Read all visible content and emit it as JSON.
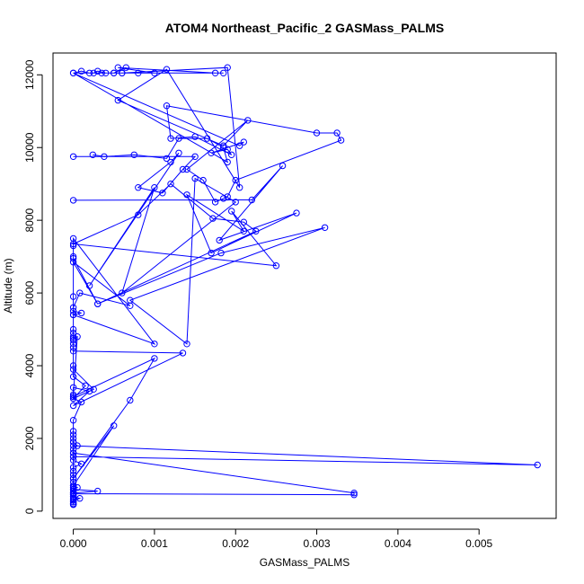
{
  "chart_data": {
    "type": "line",
    "title": "ATOM4 Northeast_Pacific_2 GASMass_PALMS",
    "xlabel": "GASMass_PALMS",
    "ylabel": "Altitude (m)",
    "xlim": [
      -0.00025,
      0.00595
    ],
    "ylim": [
      -200,
      12600
    ],
    "xticks": [
      0,
      0.001,
      0.002,
      0.003,
      0.004,
      0.005
    ],
    "xtick_labels": [
      "0.000",
      "0.001",
      "0.002",
      "0.003",
      "0.004",
      "0.005"
    ],
    "yticks": [
      0,
      2000,
      4000,
      6000,
      8000,
      10000,
      12000
    ],
    "ytick_labels": [
      "0",
      "2000",
      "4000",
      "6000",
      "8000",
      "10000",
      "12000"
    ],
    "grid": false,
    "series_color": "#0000ff",
    "series": [
      {
        "x": [
          0.0,
          0.0,
          0.0,
          0.0,
          0.0,
          0.00346,
          0.00346,
          0.0,
          0.0,
          0.00572,
          0.0,
          0.0,
          0.0,
          0.0,
          0.0,
          0.0,
          0.0005,
          0.0,
          0.0007,
          0.001,
          0.0,
          0.0,
          0.0002,
          0.0,
          0.00135,
          0.0,
          0.0,
          0.0,
          0.0,
          0.0,
          0.0,
          0.0,
          0.0001,
          0.0,
          0.0,
          8e-05,
          0.0007,
          0.0,
          0.0003,
          0.0,
          0.0,
          0.0,
          0.001,
          0.0,
          0.0,
          0.0,
          0.0,
          0.0,
          0.00015,
          0.0,
          0.00025,
          0.0,
          0.0,
          0.0,
          5e-05,
          0.0,
          0.0,
          0.0,
          0.0001,
          0.0,
          0.0,
          0.0,
          5e-05,
          0.0,
          0.0,
          0.0,
          0.0,
          0.0001,
          0.0,
          0.0,
          0.0,
          0.0,
          0.0,
          0.0,
          5e-05,
          0.0,
          0.0,
          0.0,
          0.0,
          0.0,
          0.0,
          0.0,
          0.0,
          0.0,
          0.0,
          0.0,
          0.0,
          0.0,
          8e-05,
          0.0,
          0.0,
          0.0,
          0.0003,
          0.0,
          0.0,
          0.0
        ],
        "y": [
          180,
          600,
          650,
          700,
          480,
          450,
          500,
          1600,
          1500,
          1270,
          1800,
          1900,
          2000,
          2100,
          500,
          700,
          2350,
          900,
          3050,
          4200,
          3150,
          3400,
          3300,
          2900,
          4350,
          4400,
          4500,
          4600,
          4800,
          4900,
          5000,
          5500,
          5450,
          5400,
          5600,
          6000,
          5650,
          6850,
          5700,
          6950,
          7300,
          7500,
          4600,
          5400,
          5900,
          7000,
          4000,
          3700,
          3450,
          3100,
          3350,
          3900,
          4700,
          4750,
          4800,
          3200,
          3150,
          3100,
          3000,
          2500,
          2200,
          1900,
          1800,
          1700,
          1600,
          1500,
          1400,
          1300,
          1200,
          1100,
          1000,
          900,
          800,
          700,
          650,
          600,
          550,
          500,
          450,
          400,
          350,
          300,
          250,
          200,
          180,
          200,
          250,
          300,
          350,
          400,
          450,
          500,
          550,
          600,
          650,
          700
        ]
      },
      {
        "x": [
          0.0,
          0.0022,
          0.00258,
          0.0018,
          0.00275,
          0.0017,
          0.0014,
          0.0021,
          0.00195,
          0.0025,
          0.0,
          0.0008,
          0.0012,
          0.00172,
          0.0021,
          0.00225,
          0.0003,
          0.00182,
          0.0031,
          0.0007,
          0.0014,
          0.0015,
          0.002,
          0.0006,
          0.001,
          0.0002,
          0.0013,
          0.0012,
          0.0008,
          0.0011,
          0.00135,
          0.0015,
          0.0
        ],
        "y": [
          8550,
          8560,
          9500,
          7450,
          8200,
          7100,
          8700,
          7700,
          8250,
          6750,
          7350,
          8150,
          9000,
          8050,
          7950,
          7700,
          5700,
          7100,
          7800,
          5800,
          4600,
          9150,
          8500,
          6000,
          8900,
          6200,
          9850,
          9600,
          8900,
          8750,
          9400,
          9750,
          9750
        ]
      },
      {
        "x": [
          0.00024,
          0.00038,
          0.00075,
          0.00115,
          0.0013,
          0.00165,
          0.00185,
          0.0019,
          0.0,
          0.00205,
          0.0021,
          0.0017,
          0.0019,
          0.00195,
          0.0015,
          0.0012,
          0.00115,
          0.003,
          0.00325,
          0.0033,
          0.002,
          0.0019,
          0.00185,
          0.00175,
          0.0016,
          0.0014,
          0.00215,
          0.00185,
          0.00055,
          0.00115,
          0.00205,
          0.0019,
          0.0006,
          0.00035,
          0.0002,
          0.0001,
          0.0,
          0.001,
          0.00055,
          0.00175,
          0.00185,
          0.0008,
          0.0006,
          0.0005,
          0.0004,
          0.0003,
          0.00025,
          0.0005,
          0.00065
        ],
        "y": [
          9800,
          9750,
          9800,
          9700,
          10250,
          10250,
          10000,
          9600,
          12050,
          10050,
          10150,
          9850,
          9950,
          9800,
          10300,
          10250,
          11150,
          10400,
          10400,
          10200,
          9100,
          8650,
          8600,
          8500,
          9100,
          9400,
          10750,
          10050,
          11300,
          12150,
          8900,
          12200,
          12050,
          12050,
          12050,
          12100,
          12050,
          12050,
          12200,
          12050,
          12050,
          12050,
          12050,
          12050,
          12050,
          12100,
          12050,
          12050,
          12200
        ]
      }
    ]
  }
}
